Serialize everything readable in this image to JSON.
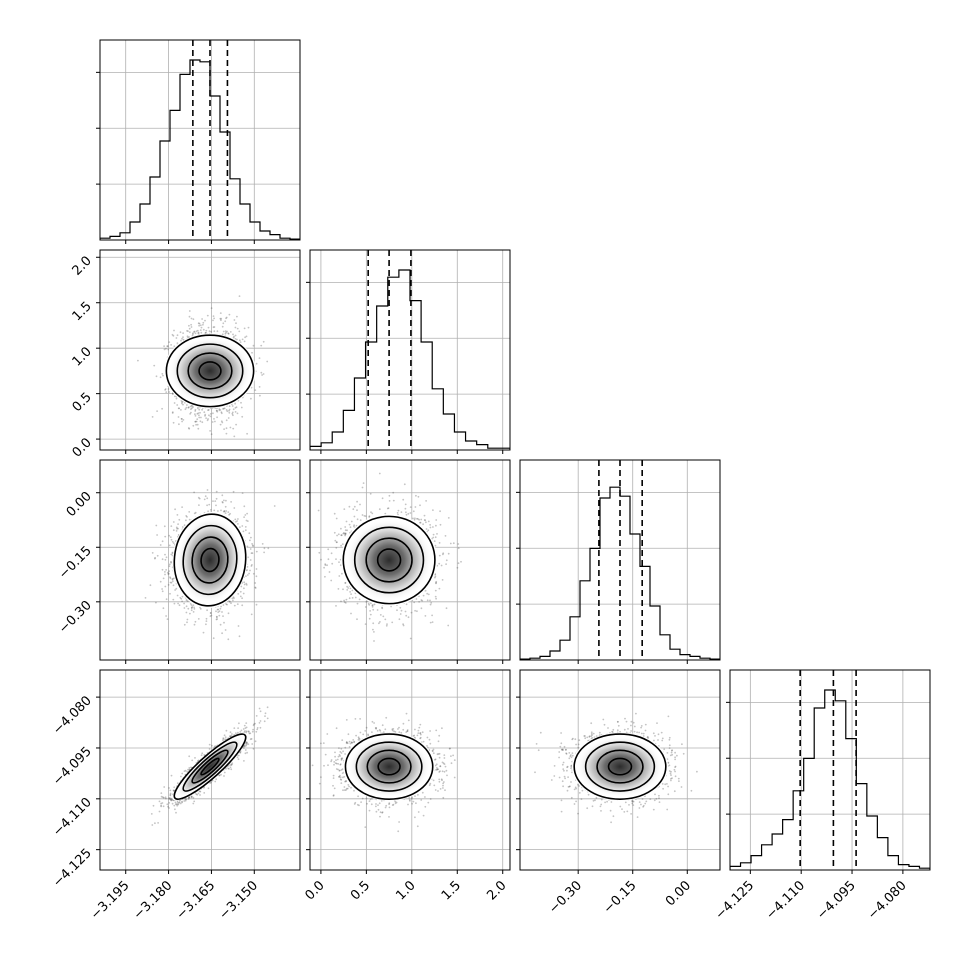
{
  "chart_data": {
    "type": "corner",
    "parameters": [
      {
        "range": [
          -3.204,
          -3.134
        ],
        "ticks": [
          -3.195,
          -3.18,
          -3.165,
          -3.15
        ],
        "tick_labels": [
          "−3.195",
          "−3.180",
          "−3.165",
          "−3.150"
        ],
        "mean": -3.1655,
        "sigma": 0.00625,
        "quantiles": [
          -3.1715,
          -3.1655,
          -3.1594
        ],
        "hist": [
          0.01,
          0.02,
          0.04,
          0.1,
          0.2,
          0.35,
          0.55,
          0.72,
          0.92,
          1.0,
          0.99,
          0.8,
          0.6,
          0.34,
          0.2,
          0.1,
          0.05,
          0.03,
          0.01,
          0.005
        ]
      },
      {
        "range": [
          -0.12,
          2.08
        ],
        "ticks": [
          0.0,
          0.5,
          1.0,
          1.5,
          2.0
        ],
        "tick_labels": [
          "0.0",
          "0.5",
          "1.0",
          "1.5",
          "2.0"
        ],
        "mean": 0.75,
        "sigma": 0.24,
        "quantiles": [
          0.52,
          0.75,
          0.99
        ],
        "hist": [
          0.02,
          0.04,
          0.1,
          0.22,
          0.4,
          0.6,
          0.8,
          0.96,
          1.0,
          0.83,
          0.6,
          0.34,
          0.2,
          0.1,
          0.05,
          0.03,
          0.01,
          0.01
        ]
      },
      {
        "range": [
          -0.46,
          0.09
        ],
        "ticks": [
          -0.3,
          -0.15,
          0.0
        ],
        "tick_labels": [
          "−0.30",
          "−0.15",
          "0.00"
        ],
        "mean": -0.185,
        "sigma": 0.063,
        "quantiles": [
          -0.243,
          -0.185,
          -0.124
        ],
        "hist": [
          0.005,
          0.01,
          0.02,
          0.05,
          0.11,
          0.24,
          0.44,
          0.62,
          0.9,
          0.96,
          0.91,
          0.7,
          0.52,
          0.3,
          0.14,
          0.06,
          0.03,
          0.02,
          0.01,
          0.005
        ]
      },
      {
        "range": [
          -4.131,
          -4.072
        ],
        "ticks": [
          -4.125,
          -4.11,
          -4.095,
          -4.08
        ],
        "tick_labels": [
          "−4.125",
          "−4.110",
          "−4.095",
          "−4.080"
        ],
        "mean": -4.1005,
        "sigma": 0.0048,
        "quantiles": [
          -4.1103,
          -4.1005,
          -4.0938
        ],
        "hist": [
          0.02,
          0.04,
          0.08,
          0.14,
          0.2,
          0.28,
          0.44,
          0.62,
          0.9,
          1.0,
          0.94,
          0.73,
          0.48,
          0.3,
          0.18,
          0.08,
          0.03,
          0.02,
          0.01
        ]
      }
    ],
    "correlations": [
      [
        1.0,
        0.0,
        0.05,
        0.9
      ],
      [
        0.0,
        1.0,
        0.0,
        0.0
      ],
      [
        0.05,
        0.0,
        1.0,
        0.0
      ],
      [
        0.9,
        0.0,
        0.0,
        1.0
      ]
    ],
    "contour_levels_sigma": [
      0.5,
      1.0,
      1.5,
      2.0
    ],
    "grid": true,
    "quantile_style": "dashed"
  }
}
